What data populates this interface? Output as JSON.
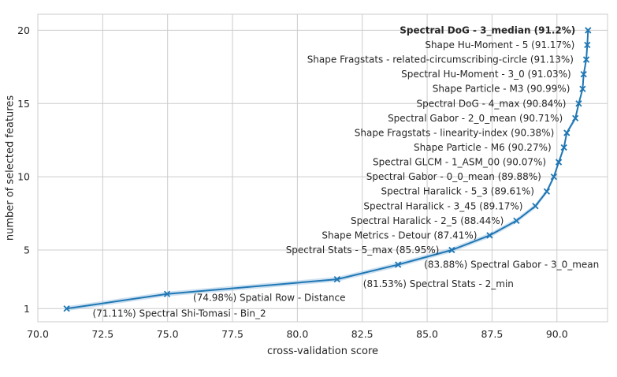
{
  "chart_data": {
    "type": "line",
    "xlabel": "cross-validation score",
    "ylabel": "number of selected features",
    "xlim": [
      70.0,
      91.95
    ],
    "ylim": [
      0.1,
      21.1
    ],
    "xticks": [
      "70.0",
      "72.5",
      "75.0",
      "77.5",
      "80.0",
      "82.5",
      "85.0",
      "87.5",
      "90.0"
    ],
    "yticks": [
      "1",
      "5",
      "10",
      "15",
      "20"
    ],
    "grid": true,
    "style": "whitegrid",
    "colors": {
      "line": "#1f77b4",
      "band": "#a6c8e6",
      "grid": "#cccccc",
      "frame": "#cccccc"
    },
    "series": [
      {
        "marker": "x",
        "points": [
          {
            "n": 1,
            "score": 71.11,
            "label": "(71.11%) Spectral Shi-Tomasi - Bin_2"
          },
          {
            "n": 2,
            "score": 74.98,
            "label": "(74.98%) Spatial Row - Distance"
          },
          {
            "n": 3,
            "score": 81.53,
            "label": "(81.53%) Spectral Stats - 2_min"
          },
          {
            "n": 4,
            "score": 83.88,
            "label": "(83.88%) Spectral Gabor - 3_0_mean"
          },
          {
            "n": 5,
            "score": 85.95,
            "label": "Spectral Stats - 5_max (85.95%)"
          },
          {
            "n": 6,
            "score": 87.41,
            "label": "Shape Metrics - Detour (87.41%)"
          },
          {
            "n": 7,
            "score": 88.44,
            "label": "Spectral Haralick - 2_5 (88.44%)"
          },
          {
            "n": 8,
            "score": 89.17,
            "label": "Spectral Haralick - 3_45 (89.17%)"
          },
          {
            "n": 9,
            "score": 89.61,
            "label": "Spectral Haralick - 5_3 (89.61%)"
          },
          {
            "n": 10,
            "score": 89.88,
            "label": "Spectral Gabor - 0_0_mean (89.88%)"
          },
          {
            "n": 11,
            "score": 90.07,
            "label": "Spectral GLCM - 1_ASM_00 (90.07%)"
          },
          {
            "n": 12,
            "score": 90.27,
            "label": "Shape Particle - M6 (90.27%)"
          },
          {
            "n": 13,
            "score": 90.38,
            "label": "Shape Fragstats - linearity-index (90.38%)"
          },
          {
            "n": 14,
            "score": 90.71,
            "label": "Spectral Gabor - 2_0_mean (90.71%)"
          },
          {
            "n": 15,
            "score": 90.84,
            "label": "Spectral DoG - 4_max (90.84%)"
          },
          {
            "n": 16,
            "score": 90.99,
            "label": "Shape Particle - M3 (90.99%)"
          },
          {
            "n": 17,
            "score": 91.03,
            "label": "Spectral Hu-Moment - 3_0 (91.03%)"
          },
          {
            "n": 18,
            "score": 91.13,
            "label": "Shape Fragstats - related-circumscribing-circle (91.13%)"
          },
          {
            "n": 19,
            "score": 91.17,
            "label": "Shape Hu-Moment - 5 (91.17%)"
          },
          {
            "n": 20,
            "score": 91.2,
            "label": "Spectral DoG - 3_median (91.2%)",
            "bold": true
          }
        ]
      }
    ]
  }
}
